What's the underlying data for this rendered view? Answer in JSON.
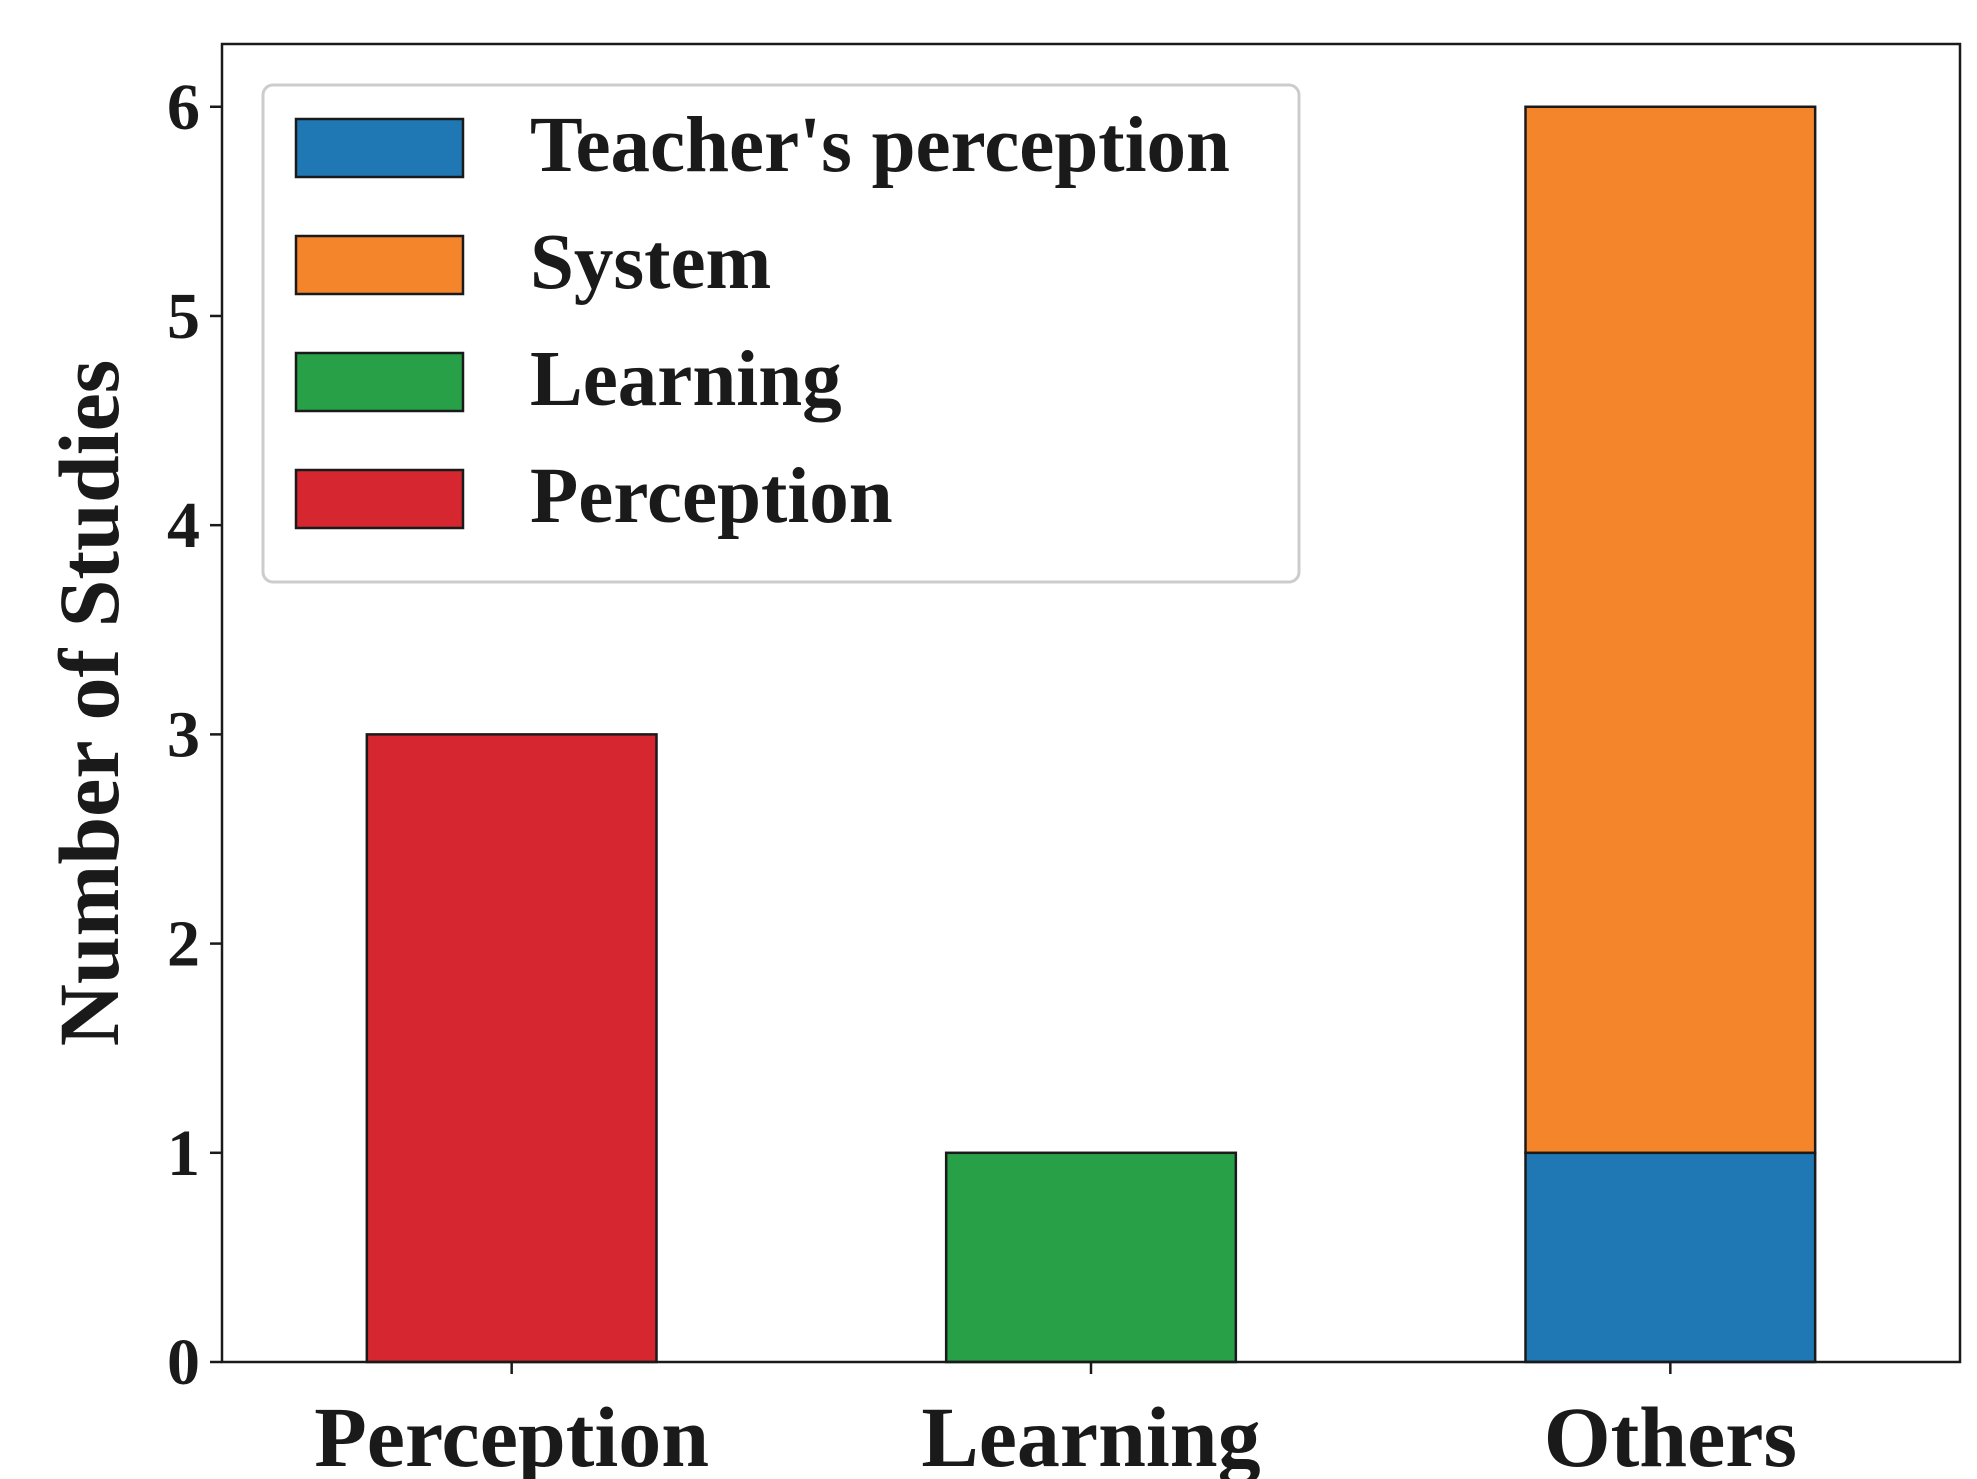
{
  "chart_data": {
    "type": "bar",
    "stacked": true,
    "title": "",
    "xlabel": "",
    "ylabel": "Number of Studies",
    "categories": [
      "Perception",
      "Learning",
      "Others"
    ],
    "ylim": [
      0,
      6.3
    ],
    "yticks": [
      0,
      1,
      2,
      3,
      4,
      5,
      6
    ],
    "grid": false,
    "legend_position": "top-left",
    "series": [
      {
        "name": "Teacher's perception",
        "color": "#1f77b4",
        "values": [
          0,
          0,
          1
        ]
      },
      {
        "name": "System",
        "color": "#f5852a",
        "values": [
          0,
          0,
          5
        ]
      },
      {
        "name": "Learning",
        "color": "#28a047",
        "values": [
          0,
          1,
          0
        ]
      },
      {
        "name": "Perception",
        "color": "#d62730",
        "values": [
          3,
          0,
          0
        ]
      }
    ]
  }
}
